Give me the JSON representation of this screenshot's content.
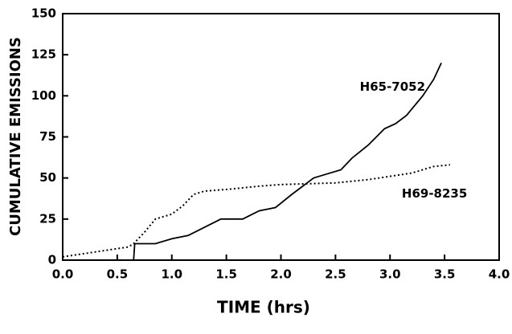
{
  "chart_data": {
    "type": "line",
    "xlabel": "TIME (hrs)",
    "ylabel": "CUMULATIVE EMISSIONS",
    "xlim": [
      0,
      4
    ],
    "ylim": [
      0,
      150
    ],
    "xticks": [
      {
        "value": 0,
        "label": "0.0"
      },
      {
        "value": 0.5,
        "label": "0.5"
      },
      {
        "value": 1,
        "label": "1.0"
      },
      {
        "value": 1.5,
        "label": "1.5"
      },
      {
        "value": 2,
        "label": "2.0"
      },
      {
        "value": 2.5,
        "label": "2.5"
      },
      {
        "value": 3,
        "label": "3.0"
      },
      {
        "value": 3.5,
        "label": "3.5"
      },
      {
        "value": 4,
        "label": "4.0"
      }
    ],
    "yticks": [
      0,
      25,
      50,
      75,
      100,
      125,
      150
    ],
    "series": [
      {
        "name": "H65-7052",
        "color": "#000000",
        "style": "solid",
        "x": [
          0.65,
          0.66,
          0.85,
          1.0,
          1.15,
          1.3,
          1.45,
          1.65,
          1.8,
          1.95,
          2.1,
          2.2,
          2.3,
          2.4,
          2.55,
          2.65,
          2.8,
          2.95,
          3.05,
          3.15,
          3.3,
          3.4,
          3.47
        ],
        "values": [
          0,
          10,
          10,
          13,
          15,
          20,
          25,
          25,
          30,
          32,
          40,
          45,
          50,
          52,
          55,
          62,
          70,
          80,
          83,
          88,
          100,
          110,
          120
        ]
      },
      {
        "name": "H69-8235",
        "color": "#000000",
        "style": "dotted",
        "x": [
          0.0,
          0.2,
          0.4,
          0.6,
          0.65,
          0.75,
          0.85,
          1.0,
          1.1,
          1.2,
          1.3,
          1.5,
          1.8,
          2.0,
          2.5,
          2.8,
          3.0,
          3.2,
          3.4,
          3.55
        ],
        "values": [
          2,
          4,
          6,
          8,
          10,
          17,
          25,
          28,
          33,
          40,
          42,
          43,
          45,
          46,
          47,
          49,
          51,
          53,
          57,
          58
        ]
      }
    ]
  }
}
